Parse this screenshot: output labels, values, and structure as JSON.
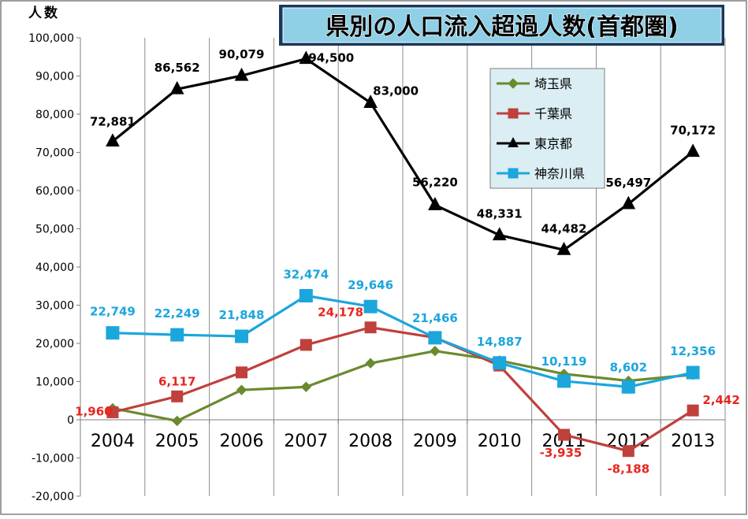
{
  "chart_data": {
    "type": "line",
    "title": "県別の人口流入超過人数(首都圏)",
    "ylabel": "人数",
    "xlabel": "",
    "categories": [
      "2004",
      "2005",
      "2006",
      "2007",
      "2008",
      "2009",
      "2010",
      "2011",
      "2012",
      "2013"
    ],
    "ylim": [
      -20000,
      100000
    ],
    "yticks": [
      -20000,
      -10000,
      0,
      10000,
      20000,
      30000,
      40000,
      50000,
      60000,
      70000,
      80000,
      90000,
      100000
    ],
    "ytick_labels": [
      "-20,000",
      "-10,000",
      "0",
      "10,000",
      "20,000",
      "30,000",
      "40,000",
      "50,000",
      "60,000",
      "70,000",
      "80,000",
      "90,000",
      "100,000"
    ],
    "legend_position": "top-right",
    "grid": "vertical",
    "series": [
      {
        "name": "埼玉県",
        "color": "#6a8a2e",
        "marker": "diamond",
        "values": [
          3000,
          -300,
          7800,
          8600,
          14800,
          18000,
          15500,
          12000,
          10200,
          11800
        ],
        "labels": [
          null,
          null,
          null,
          null,
          null,
          null,
          null,
          null,
          null,
          null
        ]
      },
      {
        "name": "千葉県",
        "color": "#c0403c",
        "marker": "square",
        "values": [
          1960,
          6117,
          12400,
          19600,
          24178,
          21500,
          14200,
          -3935,
          -8188,
          2442
        ],
        "labels": [
          "1,960",
          "6,117",
          null,
          null,
          "24,178",
          null,
          null,
          "-3,935",
          "-8,188",
          "2,442"
        ]
      },
      {
        "name": "東京都",
        "color": "#000000",
        "marker": "triangle",
        "values": [
          72881,
          86562,
          90079,
          94500,
          83000,
          56220,
          48331,
          44482,
          56497,
          70172
        ],
        "labels": [
          "72,881",
          "86,562",
          "90,079",
          "94,500",
          "83,000",
          "56,220",
          "48,331",
          "44,482",
          "56,497",
          "70,172"
        ]
      },
      {
        "name": "神奈川県",
        "color": "#1ba6dc",
        "marker": "square",
        "values": [
          22749,
          22249,
          21848,
          32474,
          29646,
          21466,
          14887,
          10119,
          8602,
          12356
        ],
        "labels": [
          "22,749",
          "22,249",
          "21,848",
          "32,474",
          "29,646",
          "21,466",
          "14,887",
          "10,119",
          "8,602",
          "12,356"
        ]
      }
    ]
  }
}
